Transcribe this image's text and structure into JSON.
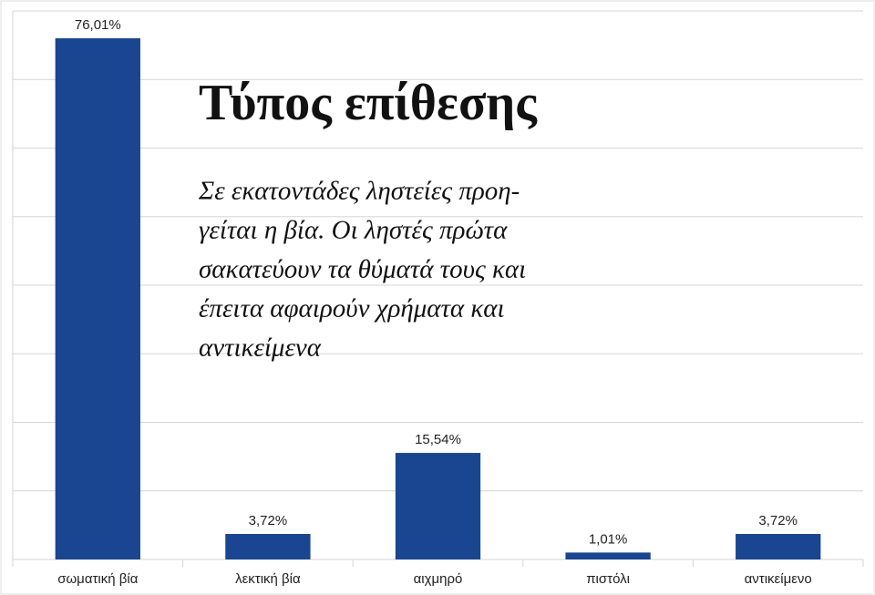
{
  "chart_data": {
    "type": "bar",
    "title": "Τύπος επίθεσης",
    "subtitle_lines": [
      "Σε εκατοντάδες ληστείες προη-",
      "γείται η βία. Οι ληστές πρώτα",
      "σακατεύουν τα θύματά τους και",
      "έπειτα αφαιρούν χρήματα και",
      "αντικείμενα"
    ],
    "categories": [
      "σωματική βία",
      "λεκτική βία",
      "αιχμηρό",
      "πιστόλι",
      "αντικείμενο"
    ],
    "values": [
      76.01,
      3.72,
      15.54,
      1.01,
      3.72
    ],
    "value_labels": [
      "76,01%",
      "3,72%",
      "15,54%",
      "1,01%",
      "3,72%"
    ],
    "color": "#1a4590",
    "ylim": [
      0,
      80
    ],
    "yticks": [
      0,
      10,
      20,
      30,
      40,
      50,
      60,
      70,
      80
    ],
    "grid": true
  }
}
